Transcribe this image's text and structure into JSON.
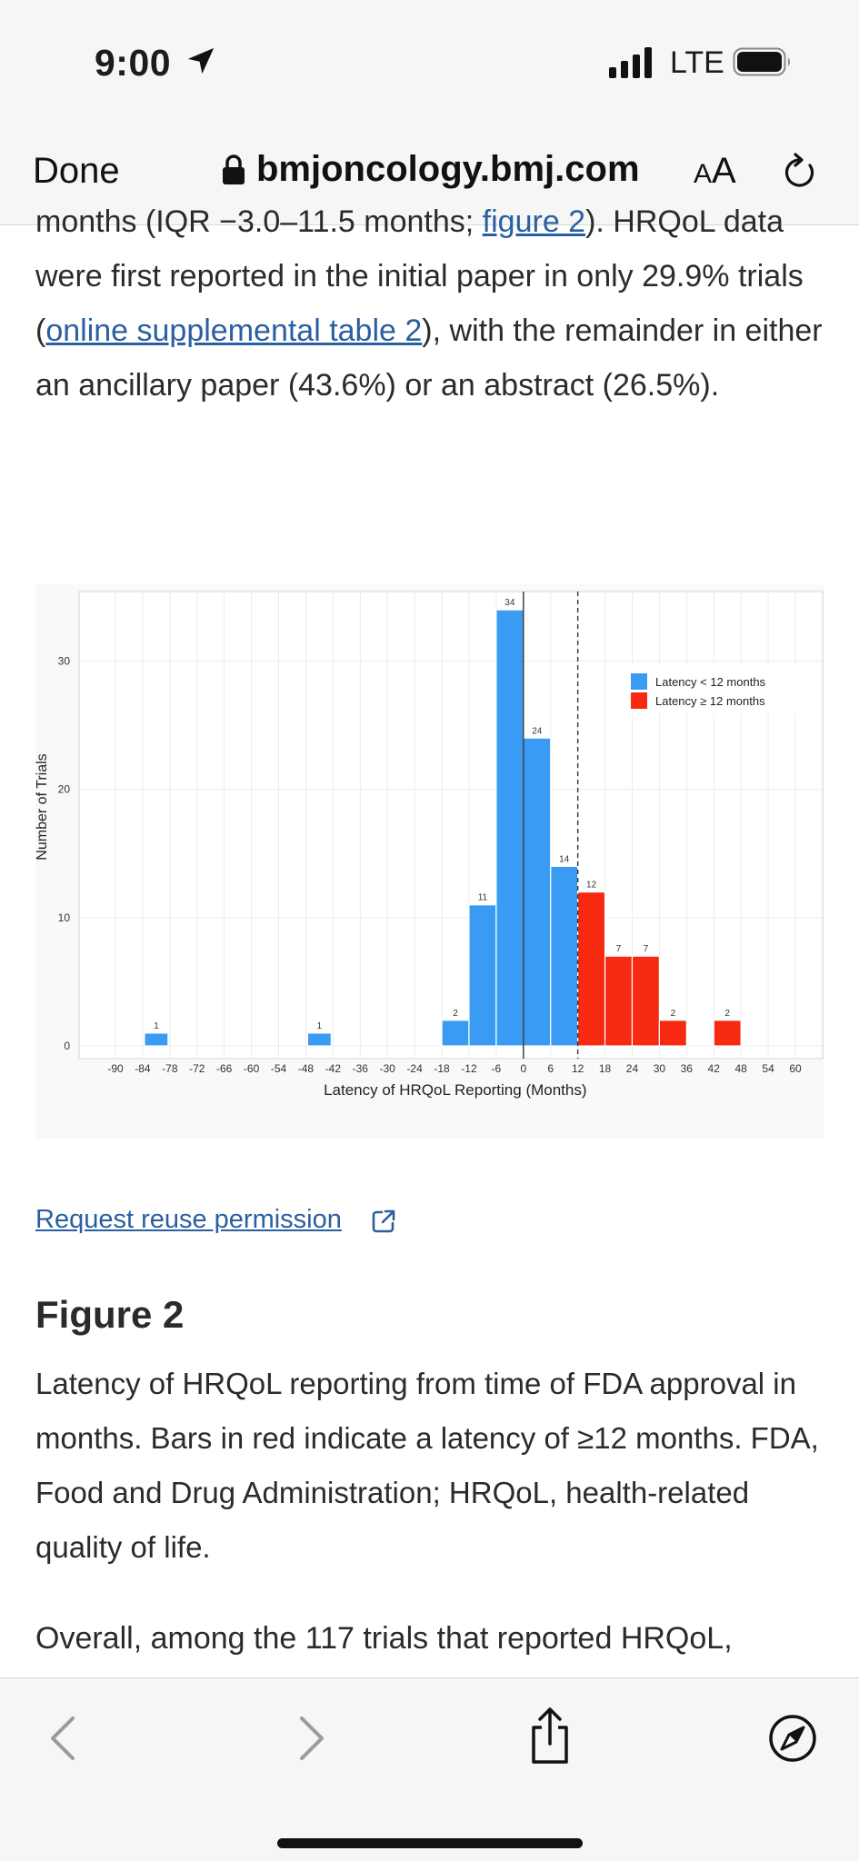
{
  "status_bar": {
    "time": "9:00",
    "network": "LTE",
    "icons": [
      "location-arrow-icon",
      "signal-bars-icon",
      "battery-icon"
    ]
  },
  "browser": {
    "done_label": "Done",
    "url": "bmjoncology.bmj.com",
    "aa_small": "A",
    "aa_large": "A",
    "icons": [
      "lock-icon",
      "reload-icon"
    ]
  },
  "article": {
    "p1_a": "months (IQR −3.0–11.5 months; ",
    "p1_link1": "figure 2",
    "p1_b": "). HRQoL data were first reported in the initial paper in only 29.9% trials (",
    "p1_link2": "online supplemental table 2",
    "p1_c": "), with the remainder in either an ancillary paper (43.6%) or an abstract (26.5%).",
    "reuse_label": "Request reuse permission",
    "figure_title": "Figure 2",
    "caption": "Latency of HRQoL reporting from time of FDA approval in months. Bars in red indicate a latency of ≥12 months. FDA, Food and Drug Administration; HRQoL, health-related quality of life.",
    "p2": "Overall, among the 117 trials that reported HRQoL,"
  },
  "chart_data": {
    "type": "bar",
    "title": "",
    "xlabel": "Latency of HRQoL Reporting (Months)",
    "ylabel": "Number of Trials",
    "x_ticks": [
      -90,
      -84,
      -78,
      -72,
      -66,
      -60,
      -54,
      -48,
      -42,
      -36,
      -30,
      -24,
      -18,
      -12,
      -6,
      0,
      6,
      12,
      18,
      24,
      30,
      36,
      42,
      48,
      54,
      60
    ],
    "y_ticks": [
      0,
      10,
      20,
      30
    ],
    "xlim": [
      -90,
      60
    ],
    "ylim": [
      0,
      35
    ],
    "grid": true,
    "legend_position": "top-right",
    "series": [
      {
        "name": "Latency < 12 months",
        "color": "#3a9bf5",
        "bars": [
          {
            "x0": -84,
            "x1": -78,
            "value": 1
          },
          {
            "x0": -48,
            "x1": -42,
            "value": 1
          },
          {
            "x0": -18,
            "x1": -12,
            "value": 2
          },
          {
            "x0": -12,
            "x1": -6,
            "value": 11
          },
          {
            "x0": -6,
            "x1": 0,
            "value": 34
          },
          {
            "x0": 0,
            "x1": 6,
            "value": 24
          },
          {
            "x0": 6,
            "x1": 12,
            "value": 14
          }
        ]
      },
      {
        "name": "Latency ≥ 12 months",
        "color": "#f52a10",
        "bars": [
          {
            "x0": 12,
            "x1": 18,
            "value": 12
          },
          {
            "x0": 18,
            "x1": 24,
            "value": 7
          },
          {
            "x0": 24,
            "x1": 30,
            "value": 7
          },
          {
            "x0": 30,
            "x1": 36,
            "value": 2
          },
          {
            "x0": 42,
            "x1": 48,
            "value": 2
          }
        ]
      }
    ],
    "reference_lines": [
      {
        "x": 0,
        "style": "solid"
      },
      {
        "x": 12,
        "style": "dashed"
      }
    ]
  },
  "toolbar": {
    "icons": [
      "back-icon",
      "forward-icon",
      "share-icon",
      "compass-icon"
    ]
  }
}
